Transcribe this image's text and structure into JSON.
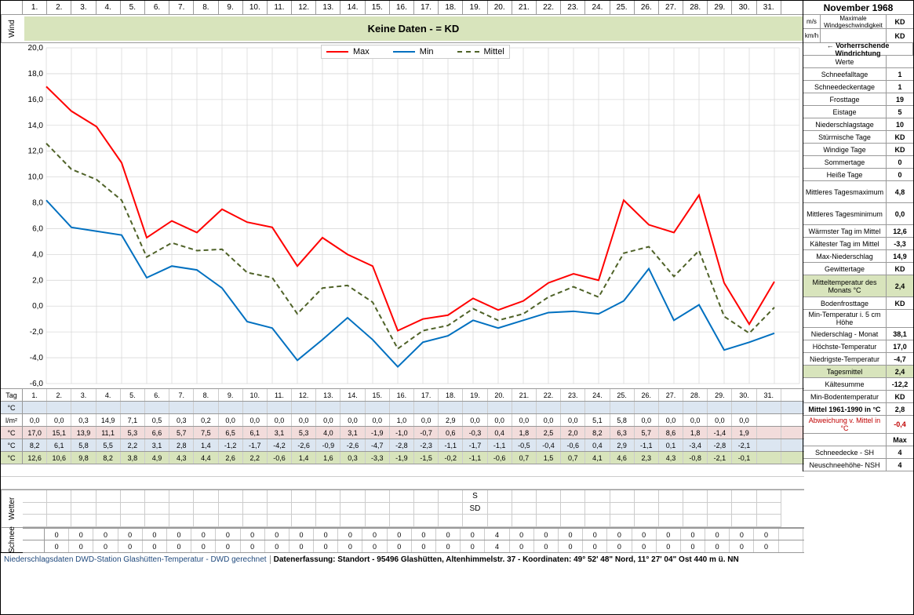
{
  "title": "November 1968",
  "days": [
    "1.",
    "2.",
    "3.",
    "4.",
    "5.",
    "6.",
    "7.",
    "8.",
    "9.",
    "10.",
    "11.",
    "12.",
    "13.",
    "14.",
    "15.",
    "16.",
    "17.",
    "18.",
    "19.",
    "20.",
    "21.",
    "22.",
    "23.",
    "24.",
    "25.",
    "26.",
    "27.",
    "28.",
    "29.",
    "30.",
    "31."
  ],
  "wind": {
    "label": "Wind",
    "band_text": "Keine Daten -  = KD",
    "band_bg": "#d8e4bc",
    "ms_label": "m/s",
    "kmh_label": "km/h",
    "max_label": "Maximale Windgeschwindigkeit",
    "ms_val": "KD",
    "kmh_val": "KD",
    "dir_label": "← Vorherrschende Windrichtung"
  },
  "chart": {
    "type": "line",
    "ylim": [
      -6,
      20
    ],
    "ytick_step": 2,
    "x_count": 31,
    "grid_color": "#d9d9d9",
    "bg": "#ffffff",
    "legend": [
      {
        "label": "Max",
        "color": "#ff0000",
        "dash": "none",
        "width": 2
      },
      {
        "label": "Min",
        "color": "#0070c0",
        "dash": "none",
        "width": 2
      },
      {
        "label": "Mittel",
        "color": "#4f6228",
        "dash": "6,4",
        "width": 2
      }
    ],
    "series": {
      "max": [
        17.0,
        15.1,
        13.9,
        11.1,
        5.3,
        6.6,
        5.7,
        7.5,
        6.5,
        6.1,
        3.1,
        5.3,
        4.0,
        3.1,
        -1.9,
        -1.0,
        -0.7,
        0.6,
        -0.3,
        0.4,
        1.8,
        2.5,
        2.0,
        8.2,
        6.3,
        5.7,
        8.6,
        1.8,
        -1.4,
        1.9
      ],
      "min": [
        8.2,
        6.1,
        5.8,
        5.5,
        2.2,
        3.1,
        2.8,
        1.4,
        -1.2,
        -1.7,
        -4.2,
        -2.6,
        -0.9,
        -2.6,
        -4.7,
        -2.8,
        -2.3,
        -1.1,
        -1.7,
        -1.1,
        -0.5,
        -0.4,
        -0.6,
        0.4,
        2.9,
        -1.1,
        0.1,
        -3.4,
        -2.8,
        -2.1
      ],
      "mittel": [
        12.6,
        10.6,
        9.8,
        8.2,
        3.8,
        4.9,
        4.3,
        4.4,
        2.6,
        2.2,
        -0.6,
        1.4,
        1.6,
        0.3,
        -3.3,
        -1.9,
        -1.5,
        -0.2,
        -1.1,
        -0.6,
        0.7,
        1.5,
        0.7,
        4.1,
        4.6,
        2.3,
        4.3,
        -0.8,
        -2.1,
        -0.1
      ]
    }
  },
  "data_rows": {
    "tag_label": "Tag",
    "c_label": "°C",
    "lm_label": "l/m²",
    "lm": [
      "0,0",
      "0,0",
      "0,3",
      "14,9",
      "7,1",
      "0,5",
      "0,3",
      "0,2",
      "0,0",
      "0,0",
      "0,0",
      "0,0",
      "0,0",
      "0,0",
      "0,0",
      "1,0",
      "0,0",
      "2,9",
      "0,0",
      "0,0",
      "0,0",
      "0,0",
      "0,0",
      "5,1",
      "5,8",
      "0,0",
      "0,0",
      "0,0",
      "0,0",
      "0,0"
    ],
    "max_c": [
      "17,0",
      "15,1",
      "13,9",
      "11,1",
      "5,3",
      "6,6",
      "5,7",
      "7,5",
      "6,5",
      "6,1",
      "3,1",
      "5,3",
      "4,0",
      "3,1",
      "-1,9",
      "-1,0",
      "-0,7",
      "0,6",
      "-0,3",
      "0,4",
      "1,8",
      "2,5",
      "2,0",
      "8,2",
      "6,3",
      "5,7",
      "8,6",
      "1,8",
      "-1,4",
      "1,9"
    ],
    "min_c": [
      "8,2",
      "6,1",
      "5,8",
      "5,5",
      "2,2",
      "3,1",
      "2,8",
      "1,4",
      "-1,2",
      "-1,7",
      "-4,2",
      "-2,6",
      "-0,9",
      "-2,6",
      "-4,7",
      "-2,8",
      "-2,3",
      "-1,1",
      "-1,7",
      "-1,1",
      "-0,5",
      "-0,4",
      "-0,6",
      "0,4",
      "2,9",
      "-1,1",
      "0,1",
      "-3,4",
      "-2,8",
      "-2,1"
    ],
    "mittel_c": [
      "12,6",
      "10,6",
      "9,8",
      "8,2",
      "3,8",
      "4,9",
      "4,3",
      "4,4",
      "2,6",
      "2,2",
      "-0,6",
      "1,4",
      "1,6",
      "0,3",
      "-3,3",
      "-1,9",
      "-1,5",
      "-0,2",
      "-1,1",
      "-0,6",
      "0,7",
      "1,5",
      "0,7",
      "4,1",
      "4,6",
      "2,3",
      "4,3",
      "-0,8",
      "-2,1",
      "-0,1"
    ]
  },
  "wetter": {
    "label": "Wetter",
    "grid": [
      [
        "",
        "",
        "",
        "",
        "",
        "",
        "",
        "",
        "",
        "",
        "",
        "",
        "",
        "",
        "",
        "",
        "",
        "",
        "S",
        "",
        "",
        "",
        "",
        "",
        "",
        "",
        "",
        "",
        "",
        ""
      ],
      [
        "",
        "",
        "",
        "",
        "",
        "",
        "",
        "",
        "",
        "",
        "",
        "",
        "",
        "",
        "",
        "",
        "",
        "",
        "SD",
        "",
        "",
        "",
        "",
        "",
        "",
        "",
        "",
        "",
        "",
        ""
      ]
    ]
  },
  "schnee": {
    "label": "Schnee",
    "sh": [
      "0",
      "0",
      "0",
      "0",
      "0",
      "0",
      "0",
      "0",
      "0",
      "0",
      "0",
      "0",
      "0",
      "0",
      "0",
      "0",
      "0",
      "0",
      "4",
      "0",
      "0",
      "0",
      "0",
      "0",
      "0",
      "0",
      "0",
      "0",
      "0",
      "0"
    ],
    "nsh": [
      "0",
      "0",
      "0",
      "0",
      "0",
      "0",
      "0",
      "0",
      "0",
      "0",
      "0",
      "0",
      "0",
      "0",
      "0",
      "0",
      "0",
      "0",
      "4",
      "0",
      "0",
      "0",
      "0",
      "0",
      "0",
      "0",
      "0",
      "0",
      "0",
      "0"
    ]
  },
  "right_panel": [
    {
      "k": "Werte",
      "v": ""
    },
    {
      "k": "Schneefalltage",
      "v": "1"
    },
    {
      "k": "Schneedeckentage",
      "v": "1"
    },
    {
      "k": "Frosttage",
      "v": "19"
    },
    {
      "k": "Eistage",
      "v": "5"
    },
    {
      "k": "Niederschlagstage",
      "v": "10"
    },
    {
      "k": "Stürmische Tage",
      "v": "KD"
    },
    {
      "k": "Windige Tage",
      "v": "KD"
    },
    {
      "k": "Sommertage",
      "v": "0"
    },
    {
      "k": "Heiße Tage",
      "v": "0"
    },
    {
      "k": "Mittleres Tagesmaximum",
      "v": "4,8",
      "tall": true
    },
    {
      "k": "Mittleres Tagesminimum",
      "v": "0,0",
      "tall": true
    },
    {
      "k": "Wärmster Tag im Mittel",
      "v": "12,6"
    },
    {
      "k": "Kältester Tag im Mittel",
      "v": "-3,3"
    },
    {
      "k": "Max-Niederschlag",
      "v": "14,9"
    },
    {
      "k": "Gewittertage",
      "v": "KD"
    },
    {
      "k": "Mitteltemperatur des Monats °C",
      "v": "2,4",
      "tall": true,
      "hl": true
    },
    {
      "k": "Bodenfrosttage",
      "v": "KD"
    },
    {
      "k": "Min-Temperatur i. 5 cm Höhe",
      "v": ""
    },
    {
      "k": "Niederschlag - Monat",
      "v": "38,1"
    },
    {
      "k": "Höchste-Temperatur",
      "v": "17,0"
    },
    {
      "k": "Niedrigste-Temperatur",
      "v": "-4,7"
    },
    {
      "k": "Tagesmittel",
      "v": "2,4",
      "hl": true
    },
    {
      "k": "Kältesumme",
      "v": "-12,2"
    },
    {
      "k": "Min-Bodentemperatur",
      "v": "KD"
    },
    {
      "k": "Mittel 1961-1990 in °C",
      "v": "2,8",
      "bold": true
    },
    {
      "k": "Abweichung v. Mittel in °C",
      "v": "-0,4",
      "red": true
    },
    {
      "k": "",
      "v": "Max"
    },
    {
      "k": "Schneedecke -  SH",
      "v": "4"
    },
    {
      "k": "Neuschneehöhe- NSH",
      "v": "4"
    }
  ],
  "footer": {
    "left": "Niederschlagsdaten DWD-Station Glashütten-Temperatur -  DWD gerechnet",
    "right": "Datenerfassung: Standort -  95496 Glashütten, Altenhimmelstr. 37 - Koordinaten:  49° 52' 48\" Nord,   11° 27' 04\" Ost   440 m ü. NN"
  }
}
